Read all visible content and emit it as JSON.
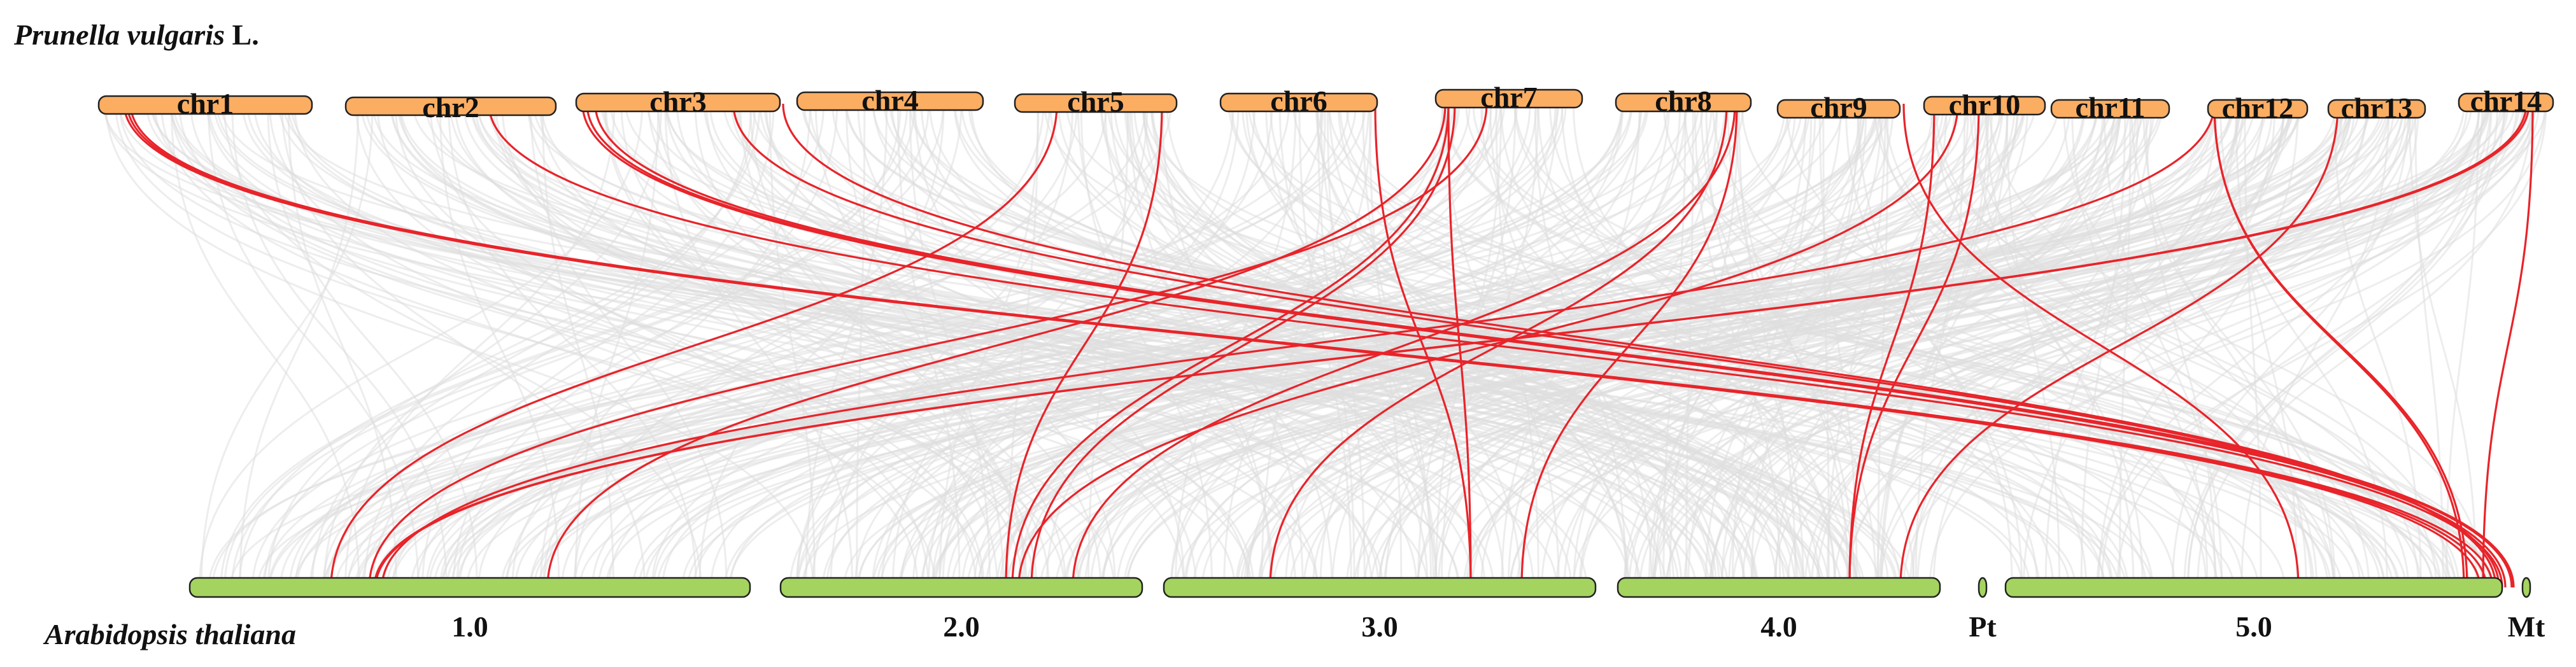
{
  "top_species": {
    "italic": "Prunella vulgaris",
    "roman": " L."
  },
  "bottom_species": "Arabidopsis thaliana",
  "colors": {
    "top_chr": "#fbad62",
    "bottom_chr": "#a4d45f",
    "highlight_link": "#e8242a",
    "background_link": "#dedede"
  },
  "top_chromosomes": [
    {
      "label": "chr1"
    },
    {
      "label": "chr2"
    },
    {
      "label": "chr3"
    },
    {
      "label": "chr4"
    },
    {
      "label": "chr5"
    },
    {
      "label": "chr6"
    },
    {
      "label": "chr7"
    },
    {
      "label": "chr8"
    },
    {
      "label": "chr9"
    },
    {
      "label": "chr10"
    },
    {
      "label": "chr11"
    },
    {
      "label": "chr12"
    },
    {
      "label": "chr13"
    },
    {
      "label": "chr14"
    }
  ],
  "bottom_chromosomes": [
    {
      "label": "1.0"
    },
    {
      "label": "2.0"
    },
    {
      "label": "3.0"
    },
    {
      "label": "4.0"
    },
    {
      "label": "Pt"
    },
    {
      "label": "5.0"
    },
    {
      "label": "Mt"
    }
  ]
}
